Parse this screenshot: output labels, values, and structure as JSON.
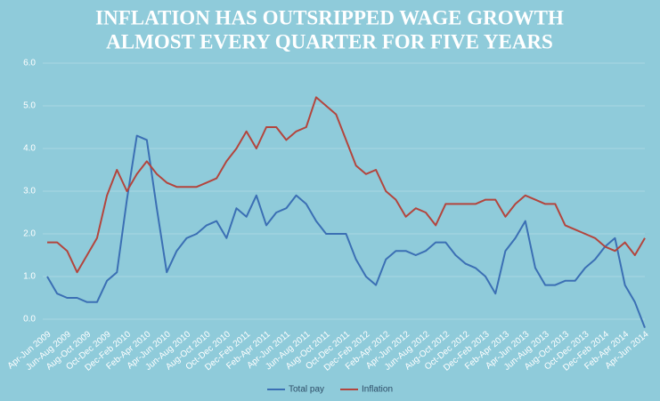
{
  "chart_data": {
    "type": "line",
    "title": [
      "INFLATION HAS OUTSRIPPED WAGE GROWTH",
      "ALMOST EVERY QUARTER FOR FIVE YEARS"
    ],
    "categories": [
      "Apr-Jun 2009",
      null,
      "Jun-Aug 2009",
      null,
      "Aug-Oct 2009",
      null,
      "Oct-Dec 2009",
      null,
      "Dec-Feb 2010",
      null,
      "Feb-Apr 2010",
      null,
      "Apr-Jun 2010",
      null,
      "Jun-Aug 2010",
      null,
      "Aug-Oct 2010",
      null,
      "Oct-Dec 2010",
      null,
      "Dec-Feb 2011",
      null,
      "Feb-Apr 2011",
      null,
      "Apr-Jun 2011",
      null,
      "Jun-Aug 2011",
      null,
      "Aug-Oct 2011",
      null,
      "Oct-Dec 2011",
      null,
      "Dec-Feb 2012",
      null,
      "Feb-Apr 2012",
      null,
      "Apr-Jun 2012",
      null,
      "Jun-Aug 2012",
      null,
      "Aug-Oct 2012",
      null,
      "Oct-Dec 2012",
      null,
      "Dec-Feb 2013",
      null,
      "Feb-Apr 2013",
      null,
      "Apr-Jun 2013",
      null,
      "Jun-Aug 2013",
      null,
      "Aug-Oct 2013",
      null,
      "Oct-Dec 2013",
      null,
      "Dec-Feb 2014",
      null,
      "Feb-Apr 2014",
      null,
      "Apr-Jun 2014"
    ],
    "series": [
      {
        "name": "Total pay",
        "color": "#3b6fb4",
        "values": [
          1.0,
          0.6,
          0.5,
          0.5,
          0.4,
          0.4,
          0.9,
          1.1,
          2.8,
          4.3,
          4.2,
          2.6,
          1.1,
          1.6,
          1.9,
          2.0,
          2.2,
          2.3,
          1.9,
          2.6,
          2.4,
          2.9,
          2.2,
          2.5,
          2.6,
          2.9,
          2.7,
          2.3,
          2.0,
          2.0,
          2.0,
          1.4,
          1.0,
          0.8,
          1.4,
          1.6,
          1.6,
          1.5,
          1.6,
          1.8,
          1.8,
          1.5,
          1.3,
          1.2,
          1.0,
          0.6,
          1.6,
          1.9,
          2.3,
          1.2,
          0.8,
          0.8,
          0.9,
          0.9,
          1.2,
          1.4,
          1.7,
          1.9,
          0.8,
          0.4,
          -0.2
        ]
      },
      {
        "name": "Inflation",
        "color": "#b3453d",
        "values": [
          1.8,
          1.8,
          1.6,
          1.1,
          1.5,
          1.9,
          2.9,
          3.5,
          3.0,
          3.4,
          3.7,
          3.4,
          3.2,
          3.1,
          3.1,
          3.1,
          3.2,
          3.3,
          3.7,
          4.0,
          4.4,
          4.0,
          4.5,
          4.5,
          4.2,
          4.4,
          4.5,
          5.2,
          5.0,
          4.8,
          4.2,
          3.6,
          3.4,
          3.5,
          3.0,
          2.8,
          2.4,
          2.6,
          2.5,
          2.2,
          2.7,
          2.7,
          2.7,
          2.7,
          2.8,
          2.8,
          2.4,
          2.7,
          2.9,
          2.8,
          2.7,
          2.7,
          2.2,
          2.1,
          2.0,
          1.9,
          1.7,
          1.6,
          1.8,
          1.5,
          1.9
        ]
      }
    ],
    "ylim": [
      -0.2,
      6.0
    ],
    "yticks": [
      {
        "value": 0,
        "label": "0.0"
      },
      {
        "value": 1,
        "label": "1.0"
      },
      {
        "value": 2,
        "label": "2.0"
      },
      {
        "value": 3,
        "label": "3.0"
      },
      {
        "value": 4,
        "label": "4.0"
      },
      {
        "value": 5,
        "label": "5.0"
      },
      {
        "value": 6,
        "label": "6.0"
      }
    ],
    "grid": true,
    "legend": "bottom"
  }
}
